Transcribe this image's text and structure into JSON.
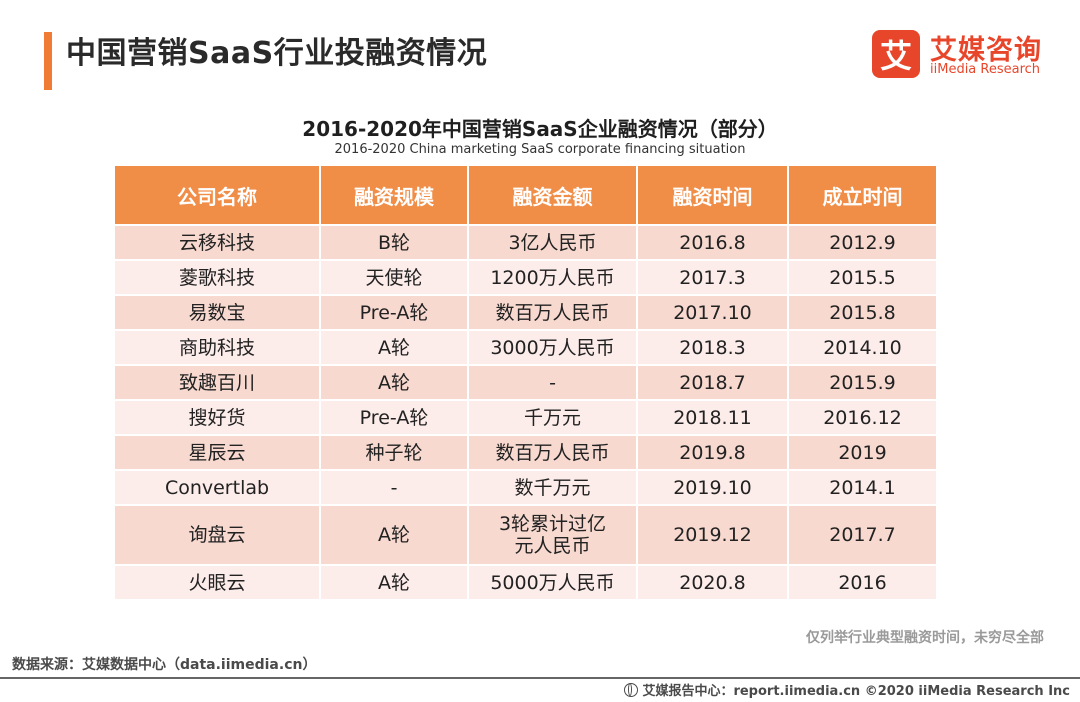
{
  "header": {
    "title": "中国营销SaaS行业投融资情况",
    "brand_mark": "艾",
    "brand_cn": "艾媒咨询",
    "brand_en": "iiMedia Research"
  },
  "table": {
    "title": "2016-2020年中国营销SaaS企业融资情况（部分）",
    "subtitle": "2016-2020 China marketing SaaS corporate financing situation",
    "columns": [
      "公司名称",
      "融资规模",
      "融资金额",
      "融资时间",
      "成立时间"
    ],
    "rows": [
      [
        "云移科技",
        "B轮",
        "3亿人民币",
        "2016.8",
        "2012.9"
      ],
      [
        "菱歌科技",
        "天使轮",
        "1200万人民币",
        "2017.3",
        "2015.5"
      ],
      [
        "易数宝",
        "Pre-A轮",
        "数百万人民币",
        "2017.10",
        "2015.8"
      ],
      [
        "商助科技",
        "A轮",
        "3000万人民币",
        "2018.3",
        "2014.10"
      ],
      [
        "致趣百川",
        "A轮",
        "-",
        "2018.7",
        "2015.9"
      ],
      [
        "搜好货",
        "Pre-A轮",
        "千万元",
        "2018.11",
        "2016.12"
      ],
      [
        "星辰云",
        "种子轮",
        "数百万人民币",
        "2019.8",
        "2019"
      ],
      [
        "Convertlab",
        "-",
        "数千万元",
        "2019.10",
        "2014.1"
      ],
      [
        "询盘云",
        "A轮",
        "3轮累计过亿元人民币",
        "2019.12",
        "2017.7"
      ],
      [
        "火眼云",
        "A轮",
        "5000万人民币",
        "2020.8",
        "2016"
      ]
    ],
    "note": "仅列举行业典型融资时间，未穷尽全部"
  },
  "footer": {
    "source": "数据来源：艾媒数据中心（data.iimedia.cn）",
    "credit": "艾媒报告中心：report.iimedia.cn  ©2020  iiMedia Research  Inc"
  }
}
